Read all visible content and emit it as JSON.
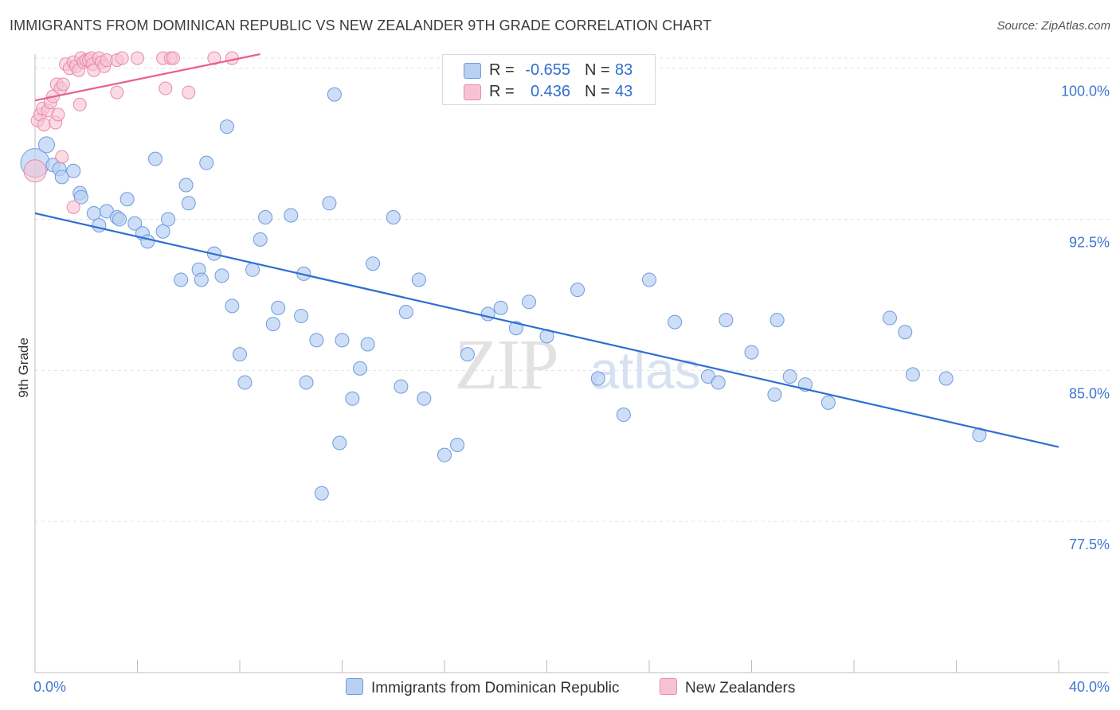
{
  "title": "IMMIGRANTS FROM DOMINICAN REPUBLIC VS NEW ZEALANDER 9TH GRADE CORRELATION CHART",
  "source": "Source: ZipAtlas.com",
  "watermark": {
    "zip": "ZIP",
    "atlas": "atlas"
  },
  "legend_top": {
    "rows": [
      {
        "r_label": "R =",
        "r_value": "-0.655",
        "n_label": "N =",
        "n_value": "83"
      },
      {
        "r_label": "R =",
        "r_value": "0.436",
        "n_label": "N =",
        "n_value": "43"
      }
    ]
  },
  "legend_bottom": {
    "items": [
      {
        "label": "Immigrants from Dominican Republic"
      },
      {
        "label": "New Zealanders"
      }
    ]
  },
  "colors": {
    "blue_fill": "#b9d0f2",
    "blue_stroke": "#6d9be0",
    "blue_line": "#2f6fd0",
    "pink_fill": "#f7c3d3",
    "pink_stroke": "#ea8aa8",
    "pink_line": "#e8608a",
    "axis_text": "#3d78d0",
    "grid": "#e3e3e3"
  },
  "chart_data": {
    "type": "scatter",
    "title": "IMMIGRANTS FROM DOMINICAN REPUBLIC VS NEW ZEALANDER 9TH GRADE CORRELATION CHART",
    "xlabel": "",
    "ylabel": "9th Grade",
    "xlim": [
      0,
      40
    ],
    "ylim": [
      70.0,
      100.7
    ],
    "x_ticks": [
      0,
      4,
      8,
      12,
      16,
      20,
      24,
      28,
      32,
      36,
      40
    ],
    "x_tick_labels": {
      "0": "0.0%",
      "40": "40.0%"
    },
    "y_ticks": [
      77.5,
      85.0,
      92.5,
      100.0
    ],
    "y_tick_labels": [
      "77.5%",
      "85.0%",
      "92.5%",
      "100.0%"
    ],
    "grid": true,
    "legend_position": "top-center",
    "series": [
      {
        "name": "Immigrants from Dominican Republic",
        "r": -0.655,
        "n": 83,
        "trend": {
          "x": [
            0,
            40
          ],
          "y": [
            92.8,
            81.2
          ]
        },
        "points": [
          [
            0.0,
            95.3
          ],
          [
            0.45,
            96.2
          ],
          [
            0.7,
            95.2
          ],
          [
            0.95,
            95.0
          ],
          [
            1.05,
            94.6
          ],
          [
            1.5,
            94.9
          ],
          [
            1.75,
            93.8
          ],
          [
            1.8,
            93.6
          ],
          [
            2.3,
            92.8
          ],
          [
            2.5,
            92.2
          ],
          [
            2.8,
            92.9
          ],
          [
            3.2,
            92.6
          ],
          [
            3.3,
            92.5
          ],
          [
            3.6,
            93.5
          ],
          [
            3.9,
            92.3
          ],
          [
            4.2,
            91.8
          ],
          [
            4.4,
            91.4
          ],
          [
            4.7,
            95.5
          ],
          [
            5.0,
            91.9
          ],
          [
            5.2,
            92.5
          ],
          [
            5.7,
            89.5
          ],
          [
            5.9,
            94.2
          ],
          [
            6.0,
            93.3
          ],
          [
            6.4,
            90.0
          ],
          [
            6.5,
            89.5
          ],
          [
            6.7,
            95.3
          ],
          [
            7.0,
            90.8
          ],
          [
            7.3,
            89.7
          ],
          [
            7.5,
            97.1
          ],
          [
            7.7,
            88.2
          ],
          [
            8.0,
            85.8
          ],
          [
            8.2,
            84.4
          ],
          [
            8.5,
            90.0
          ],
          [
            8.8,
            91.5
          ],
          [
            9.0,
            92.6
          ],
          [
            9.3,
            87.3
          ],
          [
            9.5,
            88.1
          ],
          [
            10.0,
            92.7
          ],
          [
            10.4,
            87.7
          ],
          [
            10.5,
            89.8
          ],
          [
            10.6,
            84.4
          ],
          [
            11.0,
            86.5
          ],
          [
            11.2,
            78.9
          ],
          [
            11.5,
            93.3
          ],
          [
            11.7,
            98.7
          ],
          [
            11.9,
            81.4
          ],
          [
            12.0,
            86.5
          ],
          [
            12.4,
            83.6
          ],
          [
            12.7,
            85.1
          ],
          [
            13.0,
            86.3
          ],
          [
            13.2,
            90.3
          ],
          [
            14.0,
            92.6
          ],
          [
            14.3,
            84.2
          ],
          [
            14.5,
            87.9
          ],
          [
            15.0,
            89.5
          ],
          [
            15.2,
            83.6
          ],
          [
            16.0,
            80.8
          ],
          [
            16.5,
            81.3
          ],
          [
            16.9,
            85.8
          ],
          [
            17.7,
            87.8
          ],
          [
            18.2,
            88.1
          ],
          [
            18.8,
            87.1
          ],
          [
            19.3,
            88.4
          ],
          [
            20.0,
            86.7
          ],
          [
            21.2,
            89.0
          ],
          [
            22.0,
            84.6
          ],
          [
            23.0,
            82.8
          ],
          [
            24.0,
            89.5
          ],
          [
            25.0,
            87.4
          ],
          [
            26.3,
            84.7
          ],
          [
            26.7,
            84.4
          ],
          [
            27.0,
            87.5
          ],
          [
            28.0,
            85.9
          ],
          [
            28.9,
            83.8
          ],
          [
            29.0,
            87.5
          ],
          [
            29.5,
            84.7
          ],
          [
            30.1,
            84.3
          ],
          [
            31.0,
            83.4
          ],
          [
            33.4,
            87.6
          ],
          [
            34.0,
            86.9
          ],
          [
            34.3,
            84.8
          ],
          [
            35.6,
            84.6
          ],
          [
            36.9,
            81.8
          ]
        ]
      },
      {
        "name": "New Zealanders",
        "r": 0.436,
        "n": 43,
        "trend": {
          "x": [
            0,
            8.8
          ],
          "y": [
            98.4,
            100.7
          ]
        },
        "points": [
          [
            0.0,
            94.9
          ],
          [
            0.1,
            97.4
          ],
          [
            0.2,
            97.7
          ],
          [
            0.3,
            98.0
          ],
          [
            0.35,
            97.2
          ],
          [
            0.5,
            97.9
          ],
          [
            0.6,
            98.3
          ],
          [
            0.7,
            98.6
          ],
          [
            0.8,
            97.3
          ],
          [
            0.85,
            99.2
          ],
          [
            0.9,
            97.7
          ],
          [
            1.0,
            99.0
          ],
          [
            1.05,
            95.6
          ],
          [
            1.1,
            99.2
          ],
          [
            1.2,
            100.2
          ],
          [
            1.35,
            100.0
          ],
          [
            1.5,
            93.1
          ],
          [
            1.5,
            100.3
          ],
          [
            1.6,
            100.1
          ],
          [
            1.7,
            99.9
          ],
          [
            1.75,
            98.2
          ],
          [
            1.8,
            100.5
          ],
          [
            1.9,
            100.3
          ],
          [
            2.0,
            100.4
          ],
          [
            2.1,
            100.4
          ],
          [
            2.2,
            100.5
          ],
          [
            2.25,
            100.2
          ],
          [
            2.3,
            99.9
          ],
          [
            2.5,
            100.5
          ],
          [
            2.6,
            100.3
          ],
          [
            2.7,
            100.1
          ],
          [
            2.8,
            100.4
          ],
          [
            3.2,
            100.4
          ],
          [
            3.2,
            98.8
          ],
          [
            3.4,
            100.5
          ],
          [
            4.0,
            100.5
          ],
          [
            5.0,
            100.5
          ],
          [
            5.1,
            99.0
          ],
          [
            5.3,
            100.5
          ],
          [
            5.4,
            100.5
          ],
          [
            6.0,
            98.8
          ],
          [
            7.0,
            100.5
          ],
          [
            7.7,
            100.5
          ]
        ]
      }
    ]
  }
}
